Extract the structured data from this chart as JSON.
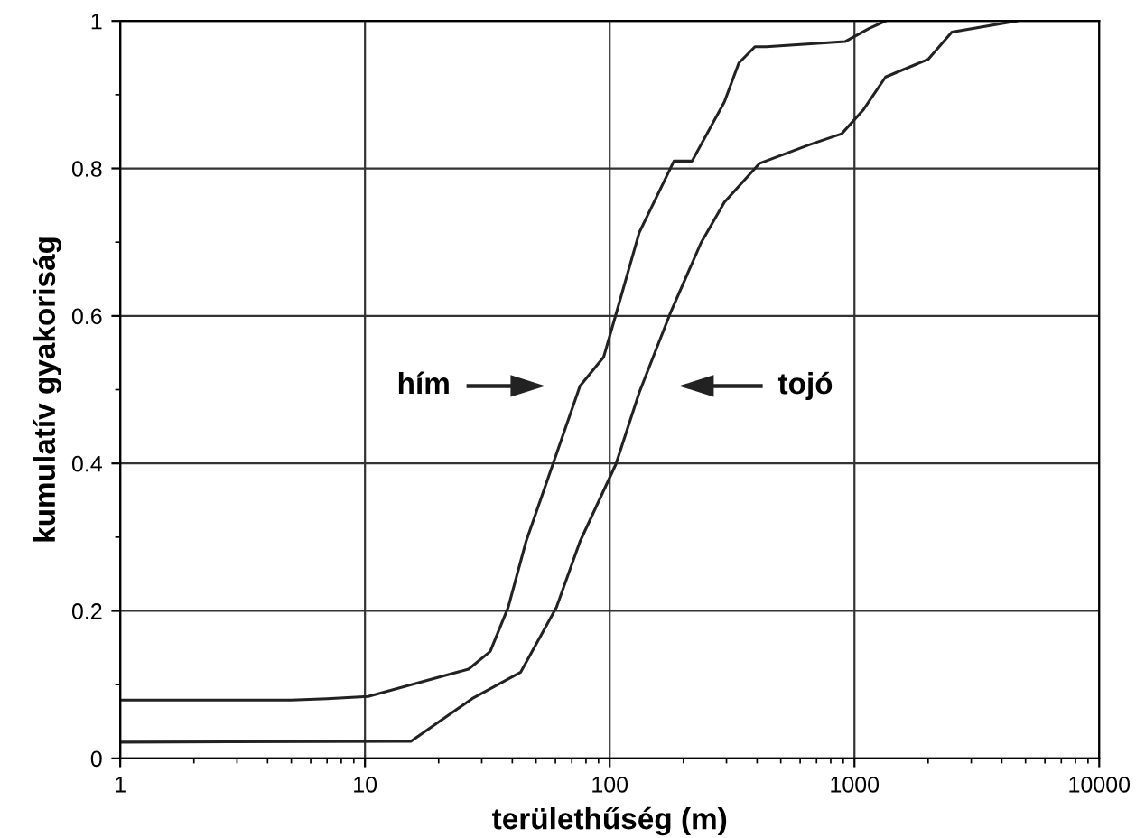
{
  "chart_data": {
    "type": "line",
    "xlabel": "területhűség (m)",
    "ylabel": "kumulatív gyakoriság",
    "log": "x",
    "xlim": [
      1,
      10000
    ],
    "xticks": [
      1,
      10,
      100,
      1000,
      10000
    ],
    "ylim": [
      0,
      1
    ],
    "yticks": [
      0,
      0.2,
      0.4,
      0.6,
      0.8,
      1
    ],
    "grid": true,
    "marker": "none",
    "line_style": "solid",
    "series": [
      {
        "color": "#222222",
        "x": [
          1,
          5,
          7,
          10.3,
          26.5,
          32.5,
          38.5,
          45.5,
          58.6,
          75.6,
          94.4,
          106,
          132,
          183,
          217,
          294,
          337,
          392,
          436,
          915,
          1150,
          1340
        ],
        "values": [
          0.079,
          0.079,
          0.081,
          0.084,
          0.121,
          0.145,
          0.205,
          0.294,
          0.399,
          0.505,
          0.544,
          0.602,
          0.713,
          0.81,
          0.81,
          0.89,
          0.943,
          0.965,
          0.965,
          0.972,
          0.99,
          1.0
        ]
      },
      {
        "color": "#222222",
        "x": [
          1,
          15.4,
          27.4,
          43.3,
          60.6,
          75.6,
          106,
          132,
          176,
          236,
          294,
          410,
          653,
          887,
          1090,
          1340,
          2000,
          2500,
          4600
        ],
        "values": [
          0.022,
          0.023,
          0.081,
          0.117,
          0.205,
          0.294,
          0.399,
          0.496,
          0.602,
          0.699,
          0.754,
          0.807,
          0.832,
          0.847,
          0.88,
          0.924,
          0.948,
          0.985,
          1.0
        ]
      }
    ],
    "annotations": [
      "hím",
      "tojó"
    ]
  }
}
